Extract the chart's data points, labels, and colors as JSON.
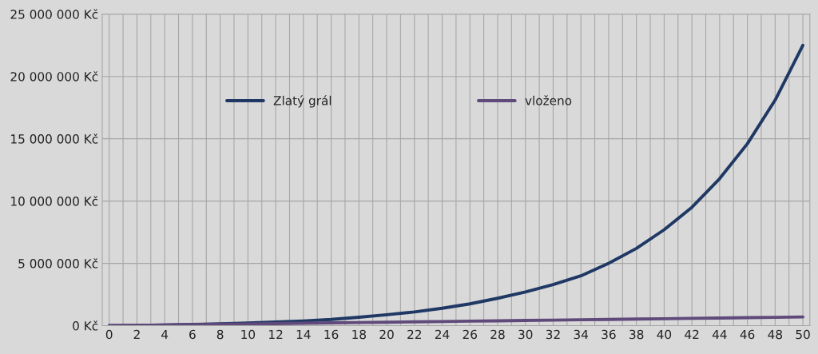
{
  "chart_data": {
    "type": "line",
    "x": [
      0,
      2,
      4,
      6,
      8,
      10,
      12,
      14,
      16,
      18,
      20,
      22,
      24,
      26,
      28,
      30,
      32,
      34,
      36,
      38,
      40,
      42,
      44,
      46,
      48,
      50
    ],
    "series": [
      {
        "name": "Zlatý grál",
        "color": "#1f3864",
        "values": [
          0,
          30000,
          60000,
          110000,
          150000,
          210000,
          290000,
          380000,
          500000,
          680000,
          880000,
          1100000,
          1400000,
          1750000,
          2200000,
          2700000,
          3300000,
          4000000,
          5000000,
          6200000,
          7700000,
          9500000,
          11800000,
          14600000,
          18100000,
          22500000
        ]
      },
      {
        "name": "vloženo",
        "color": "#604a7b",
        "values": [
          0,
          28000,
          56000,
          84000,
          112000,
          140000,
          168000,
          196000,
          224000,
          252000,
          280000,
          308000,
          336000,
          364000,
          392000,
          420000,
          448000,
          476000,
          504000,
          532000,
          560000,
          588000,
          616000,
          644000,
          672000,
          700000
        ]
      }
    ],
    "xlim": [
      -0.5,
      50.5
    ],
    "xticks": [
      0,
      {
        "value": 1,
        "label": null
      },
      2,
      {
        "value": 3,
        "label": null
      },
      4,
      {
        "value": 5,
        "label": null
      },
      6,
      {
        "value": 7,
        "label": null
      },
      8,
      {
        "value": 9,
        "label": null
      },
      10,
      {
        "value": 11,
        "label": null
      },
      12,
      {
        "value": 13,
        "label": null
      },
      14,
      {
        "value": 15,
        "label": null
      },
      16,
      {
        "value": 17,
        "label": null
      },
      18,
      {
        "value": 19,
        "label": null
      },
      20,
      {
        "value": 21,
        "label": null
      },
      22,
      {
        "value": 23,
        "label": null
      },
      24,
      {
        "value": 25,
        "label": null
      },
      26,
      {
        "value": 27,
        "label": null
      },
      28,
      {
        "value": 29,
        "label": null
      },
      30,
      {
        "value": 31,
        "label": null
      },
      32,
      {
        "value": 33,
        "label": null
      },
      34,
      {
        "value": 35,
        "label": null
      },
      36,
      {
        "value": 37,
        "label": null
      },
      38,
      {
        "value": 39,
        "label": null
      },
      40,
      {
        "value": 41,
        "label": null
      },
      42,
      {
        "value": 43,
        "label": null
      },
      44,
      {
        "value": 45,
        "label": null
      },
      46,
      {
        "value": 47,
        "label": null
      },
      48,
      {
        "value": 49,
        "label": null
      },
      50
    ],
    "ylim": [
      0,
      25000000
    ],
    "yticks": [
      {
        "value": 0,
        "label": "0 Kč"
      },
      {
        "value": 5000000,
        "label": "5 000 000 Kč"
      },
      {
        "value": 10000000,
        "label": "10 000 000 Kč"
      },
      {
        "value": 15000000,
        "label": "15 000 000 Kč"
      },
      {
        "value": 20000000,
        "label": "20 000 000 Kč"
      },
      {
        "value": 25000000,
        "label": "25 000 000 Kč"
      }
    ],
    "grid": true,
    "legend": "top",
    "marker": "none",
    "line_style": "solid"
  }
}
